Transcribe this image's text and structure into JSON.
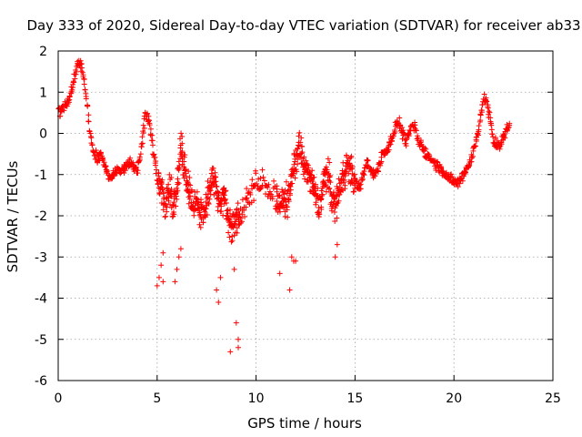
{
  "chart_data": {
    "type": "scatter",
    "title": "Day 333 of 2020, Sidereal Day-to-day VTEC variation (SDTVAR) for receiver ab33",
    "xlabel": "GPS time / hours",
    "ylabel": "SDTVAR / TECUs",
    "xlim": [
      0,
      25
    ],
    "ylim": [
      -6,
      2
    ],
    "xticks": [
      0,
      5,
      10,
      15,
      20,
      25
    ],
    "yticks": [
      -6,
      -5,
      -4,
      -3,
      -2,
      -1,
      0,
      1,
      2
    ],
    "grid": true,
    "marker": "+",
    "colors": {
      "series": "#ff0000",
      "grid": "#a0a0a0",
      "axes": "#000000"
    },
    "trace": [
      [
        0.0,
        0.5
      ],
      [
        0.2,
        0.6
      ],
      [
        0.4,
        0.7
      ],
      [
        0.6,
        0.9
      ],
      [
        0.8,
        1.3
      ],
      [
        1.0,
        1.7
      ],
      [
        1.2,
        1.6
      ],
      [
        1.4,
        1.0
      ],
      [
        1.6,
        0.0
      ],
      [
        1.8,
        -0.5
      ],
      [
        2.0,
        -0.6
      ],
      [
        2.2,
        -0.5
      ],
      [
        2.4,
        -0.9
      ],
      [
        2.6,
        -1.1
      ],
      [
        2.8,
        -1.0
      ],
      [
        3.0,
        -0.9
      ],
      [
        3.2,
        -0.9
      ],
      [
        3.4,
        -0.8
      ],
      [
        3.6,
        -0.7
      ],
      [
        3.8,
        -0.8
      ],
      [
        4.0,
        -0.9
      ],
      [
        4.2,
        -0.3
      ],
      [
        4.4,
        0.5
      ],
      [
        4.6,
        0.3
      ],
      [
        4.8,
        -0.4
      ],
      [
        5.0,
        -1.0
      ],
      [
        5.2,
        -1.3
      ],
      [
        5.4,
        -1.8
      ],
      [
        5.6,
        -1.2
      ],
      [
        5.8,
        -1.9
      ],
      [
        6.0,
        -1.3
      ],
      [
        6.2,
        -0.3
      ],
      [
        6.4,
        -0.8
      ],
      [
        6.6,
        -1.4
      ],
      [
        6.8,
        -1.8
      ],
      [
        7.0,
        -1.6
      ],
      [
        7.2,
        -2.0
      ],
      [
        7.4,
        -1.9
      ],
      [
        7.6,
        -1.5
      ],
      [
        7.8,
        -1.0
      ],
      [
        8.0,
        -1.3
      ],
      [
        8.2,
        -1.8
      ],
      [
        8.4,
        -1.5
      ],
      [
        8.6,
        -2.0
      ],
      [
        8.8,
        -2.3
      ],
      [
        9.0,
        -2.1
      ],
      [
        9.2,
        -2.0
      ],
      [
        9.6,
        -1.5
      ],
      [
        10.0,
        -1.3
      ],
      [
        10.5,
        -1.2
      ],
      [
        11.0,
        -1.5
      ],
      [
        11.2,
        -1.8
      ],
      [
        11.4,
        -1.6
      ],
      [
        11.6,
        -1.7
      ],
      [
        11.8,
        -1.0
      ],
      [
        12.0,
        -0.7
      ],
      [
        12.2,
        -0.3
      ],
      [
        12.4,
        -0.8
      ],
      [
        12.6,
        -0.9
      ],
      [
        12.8,
        -1.2
      ],
      [
        13.0,
        -1.5
      ],
      [
        13.2,
        -1.8
      ],
      [
        13.4,
        -1.2
      ],
      [
        13.6,
        -0.9
      ],
      [
        13.8,
        -1.5
      ],
      [
        14.0,
        -1.8
      ],
      [
        14.2,
        -1.3
      ],
      [
        14.4,
        -1.0
      ],
      [
        14.6,
        -0.8
      ],
      [
        14.8,
        -0.9
      ],
      [
        15.0,
        -1.2
      ],
      [
        15.2,
        -1.3
      ],
      [
        15.4,
        -1.1
      ],
      [
        15.6,
        -0.7
      ],
      [
        15.8,
        -0.9
      ],
      [
        16.0,
        -1.0
      ],
      [
        16.2,
        -0.8
      ],
      [
        16.4,
        -0.5
      ],
      [
        16.6,
        -0.4
      ],
      [
        16.8,
        -0.2
      ],
      [
        17.0,
        0.1
      ],
      [
        17.2,
        0.3
      ],
      [
        17.4,
        0.0
      ],
      [
        17.6,
        -0.2
      ],
      [
        17.8,
        0.1
      ],
      [
        18.0,
        0.2
      ],
      [
        18.2,
        -0.2
      ],
      [
        18.4,
        -0.3
      ],
      [
        18.6,
        -0.5
      ],
      [
        18.8,
        -0.6
      ],
      [
        19.0,
        -0.7
      ],
      [
        19.2,
        -0.8
      ],
      [
        19.4,
        -0.9
      ],
      [
        19.6,
        -1.0
      ],
      [
        19.8,
        -1.1
      ],
      [
        20.0,
        -1.2
      ],
      [
        20.2,
        -1.2
      ],
      [
        20.4,
        -1.1
      ],
      [
        20.6,
        -0.9
      ],
      [
        20.8,
        -0.7
      ],
      [
        21.0,
        -0.4
      ],
      [
        21.2,
        0.0
      ],
      [
        21.4,
        0.6
      ],
      [
        21.6,
        0.9
      ],
      [
        21.8,
        0.4
      ],
      [
        22.0,
        -0.2
      ],
      [
        22.2,
        -0.3
      ],
      [
        22.4,
        -0.2
      ],
      [
        22.6,
        0.0
      ],
      [
        22.8,
        0.2
      ]
    ],
    "outliers": [
      [
        5.0,
        -3.7
      ],
      [
        5.1,
        -3.5
      ],
      [
        5.2,
        -3.2
      ],
      [
        5.3,
        -2.9
      ],
      [
        5.3,
        -3.6
      ],
      [
        5.9,
        -3.6
      ],
      [
        6.0,
        -3.3
      ],
      [
        6.1,
        -3.0
      ],
      [
        6.2,
        -2.8
      ],
      [
        8.0,
        -3.8
      ],
      [
        8.1,
        -4.1
      ],
      [
        8.2,
        -3.5
      ],
      [
        8.8,
        -2.6
      ],
      [
        8.9,
        -3.3
      ],
      [
        9.0,
        -4.6
      ],
      [
        9.1,
        -5.0
      ],
      [
        9.1,
        -5.2
      ],
      [
        8.7,
        -5.3
      ],
      [
        11.2,
        -3.4
      ],
      [
        11.7,
        -3.8
      ],
      [
        11.8,
        -3.0
      ],
      [
        11.9,
        -3.1
      ],
      [
        14.0,
        -3.0
      ],
      [
        14.1,
        -2.7
      ],
      [
        12.0,
        -3.1
      ]
    ]
  }
}
